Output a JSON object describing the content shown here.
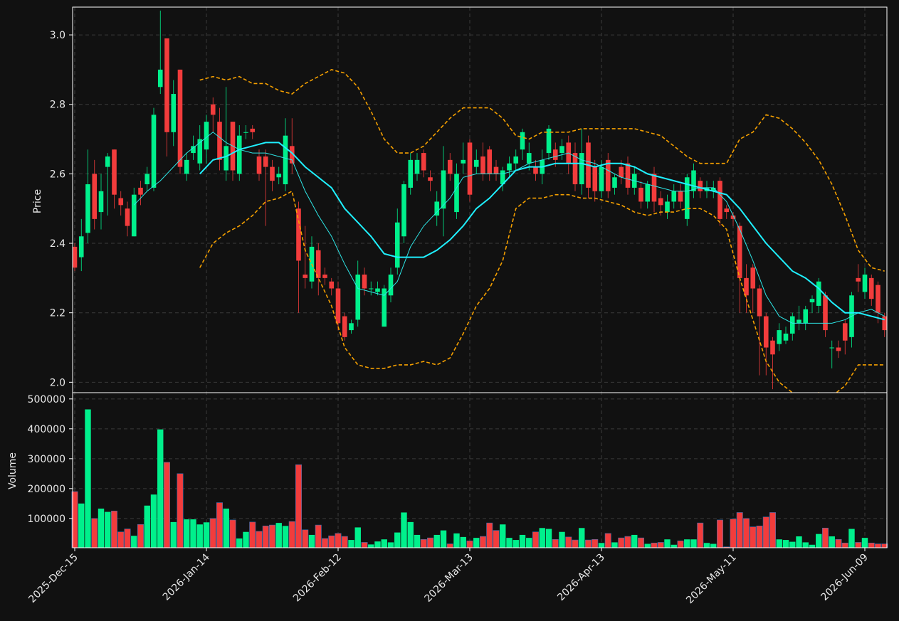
{
  "chart_data": {
    "type": "candlestick",
    "ylabel": "Price",
    "volume_label": "Volume",
    "up_color": "#00f08c",
    "down_color": "#f23c3c",
    "grid": true,
    "ylim": [
      1.97,
      3.08
    ],
    "yticks": [
      {
        "value": 2.0,
        "label": "2.0"
      },
      2.2,
      2.4,
      2.6,
      2.8,
      {
        "value": 3.0,
        "label": "3.0"
      }
    ],
    "volume_ylim": [
      2000,
      521000
    ],
    "volume_yticks": [
      100000,
      200000,
      300000,
      400000,
      500000
    ],
    "categories": [
      "2025-Dec-15",
      null,
      null,
      null,
      null,
      null,
      null,
      null,
      null,
      null,
      null,
      null,
      null,
      null,
      null,
      null,
      null,
      null,
      null,
      null,
      "2026-Jan-14",
      null,
      null,
      null,
      null,
      null,
      null,
      null,
      null,
      null,
      null,
      null,
      null,
      null,
      null,
      null,
      null,
      null,
      null,
      null,
      "2026-Feb-12",
      null,
      null,
      null,
      null,
      null,
      null,
      null,
      null,
      null,
      null,
      null,
      null,
      null,
      null,
      null,
      null,
      null,
      null,
      null,
      "2026-Mar-13",
      null,
      null,
      null,
      null,
      null,
      null,
      null,
      null,
      null,
      null,
      null,
      null,
      null,
      null,
      null,
      null,
      null,
      null,
      null,
      "2026-Apr-13",
      null,
      null,
      null,
      null,
      null,
      null,
      null,
      null,
      null,
      null,
      null,
      null,
      null,
      null,
      null,
      null,
      null,
      null,
      null,
      "2026-May-11",
      null,
      null,
      null,
      null,
      null,
      null,
      null,
      null,
      null,
      null,
      null,
      null,
      null,
      null,
      null,
      null,
      null,
      null,
      null,
      "2026-Jun-09",
      null,
      null,
      null
    ],
    "open": [
      2.39,
      2.36,
      2.43,
      2.6,
      2.49,
      2.62,
      2.67,
      2.53,
      2.5,
      2.42,
      2.56,
      2.57,
      2.56,
      2.85,
      2.99,
      2.72,
      2.9,
      2.6,
      2.66,
      2.63,
      2.67,
      2.8,
      2.75,
      2.61,
      2.75,
      2.6,
      2.72,
      2.73,
      2.65,
      2.65,
      2.62,
      2.59,
      2.57,
      2.68,
      2.5,
      2.31,
      2.29,
      2.38,
      2.31,
      2.29,
      2.27,
      2.19,
      2.15,
      2.18,
      2.31,
      2.27,
      2.26,
      2.16,
      2.25,
      2.33,
      2.42,
      2.56,
      2.6,
      2.66,
      2.59,
      2.48,
      2.5,
      2.64,
      2.49,
      2.63,
      2.69,
      2.62,
      2.65,
      2.67,
      2.62,
      2.57,
      2.61,
      2.63,
      2.67,
      2.63,
      2.62,
      2.6,
      2.66,
      2.67,
      2.66,
      2.69,
      2.66,
      2.57,
      2.69,
      2.62,
      2.55,
      2.64,
      2.56,
      2.62,
      2.63,
      2.56,
      2.56,
      2.52,
      2.6,
      2.53,
      2.49,
      2.52,
      2.55,
      2.47,
      2.55,
      2.58,
      2.55,
      2.55,
      2.58,
      2.5,
      2.48,
      2.45,
      2.3,
      2.33,
      2.27,
      2.19,
      2.12,
      2.11,
      2.12,
      2.14,
      2.17,
      2.17,
      2.23,
      2.22,
      2.25,
      2.1,
      2.1,
      2.17,
      2.13,
      2.3,
      2.26,
      2.3,
      2.28,
      2.19
    ],
    "high": [
      2.4,
      2.47,
      2.67,
      2.64,
      2.6,
      2.66,
      2.67,
      2.55,
      2.52,
      2.56,
      2.58,
      2.62,
      2.79,
      3.07,
      2.99,
      2.87,
      2.9,
      2.66,
      2.71,
      2.74,
      2.77,
      2.82,
      2.79,
      2.85,
      2.75,
      2.74,
      2.74,
      2.74,
      2.67,
      2.67,
      2.64,
      2.62,
      2.76,
      2.76,
      2.52,
      2.45,
      2.42,
      2.4,
      2.33,
      2.3,
      2.29,
      2.2,
      2.18,
      2.35,
      2.33,
      2.29,
      2.29,
      2.28,
      2.33,
      2.5,
      2.58,
      2.66,
      2.66,
      2.67,
      2.61,
      2.55,
      2.68,
      2.66,
      2.63,
      2.69,
      2.7,
      2.67,
      2.69,
      2.68,
      2.64,
      2.62,
      2.65,
      2.67,
      2.73,
      2.69,
      2.64,
      2.67,
      2.74,
      2.69,
      2.7,
      2.71,
      2.69,
      2.73,
      2.71,
      2.64,
      2.64,
      2.66,
      2.6,
      2.64,
      2.65,
      2.62,
      2.58,
      2.58,
      2.62,
      2.55,
      2.54,
      2.57,
      2.57,
      2.6,
      2.63,
      2.59,
      2.58,
      2.58,
      2.59,
      2.51,
      2.49,
      2.46,
      2.34,
      2.34,
      2.28,
      2.2,
      2.13,
      2.17,
      2.16,
      2.2,
      2.22,
      2.22,
      2.25,
      2.3,
      2.26,
      2.12,
      2.12,
      2.18,
      2.26,
      2.34,
      2.33,
      2.31,
      2.29,
      2.2
    ],
    "low": [
      2.32,
      2.32,
      2.4,
      2.44,
      2.44,
      2.48,
      2.5,
      2.48,
      2.42,
      2.42,
      2.51,
      2.55,
      2.55,
      2.83,
      2.65,
      2.68,
      2.6,
      2.58,
      2.64,
      2.61,
      2.63,
      2.72,
      2.61,
      2.58,
      2.58,
      2.58,
      2.7,
      2.7,
      2.58,
      2.45,
      2.55,
      2.57,
      2.55,
      2.6,
      2.2,
      2.27,
      2.27,
      2.25,
      2.28,
      2.25,
      2.15,
      2.12,
      2.14,
      2.16,
      2.25,
      2.25,
      2.25,
      2.16,
      2.23,
      2.31,
      2.4,
      2.54,
      2.58,
      2.59,
      2.55,
      2.45,
      2.42,
      2.58,
      2.47,
      2.6,
      2.52,
      2.6,
      2.58,
      2.58,
      2.58,
      2.55,
      2.59,
      2.61,
      2.64,
      2.61,
      2.58,
      2.57,
      2.64,
      2.62,
      2.64,
      2.6,
      2.55,
      2.54,
      2.53,
      2.52,
      2.53,
      2.53,
      2.54,
      2.57,
      2.54,
      2.54,
      2.5,
      2.5,
      2.49,
      2.48,
      2.47,
      2.5,
      2.5,
      2.45,
      2.53,
      2.53,
      2.53,
      2.53,
      2.45,
      2.47,
      2.45,
      2.2,
      2.2,
      2.2,
      2.02,
      2.02,
      1.98,
      2.09,
      2.11,
      2.12,
      2.15,
      2.15,
      2.2,
      2.2,
      2.13,
      2.04,
      2.07,
      2.08,
      2.1,
      2.26,
      2.24,
      2.22,
      2.17,
      2.13
    ],
    "close": [
      2.33,
      2.42,
      2.57,
      2.47,
      2.55,
      2.65,
      2.54,
      2.51,
      2.45,
      2.54,
      2.54,
      2.6,
      2.77,
      2.9,
      2.72,
      2.83,
      2.62,
      2.64,
      2.68,
      2.7,
      2.75,
      2.77,
      2.64,
      2.68,
      2.61,
      2.71,
      2.72,
      2.72,
      2.6,
      2.62,
      2.58,
      2.6,
      2.71,
      2.63,
      2.35,
      2.3,
      2.39,
      2.3,
      2.3,
      2.27,
      2.17,
      2.13,
      2.17,
      2.31,
      2.27,
      2.27,
      2.27,
      2.27,
      2.31,
      2.46,
      2.57,
      2.64,
      2.64,
      2.61,
      2.58,
      2.52,
      2.61,
      2.6,
      2.6,
      2.64,
      2.54,
      2.64,
      2.6,
      2.6,
      2.6,
      2.61,
      2.63,
      2.65,
      2.72,
      2.66,
      2.6,
      2.64,
      2.73,
      2.64,
      2.68,
      2.63,
      2.57,
      2.66,
      2.56,
      2.55,
      2.62,
      2.55,
      2.59,
      2.59,
      2.56,
      2.6,
      2.52,
      2.57,
      2.52,
      2.51,
      2.52,
      2.55,
      2.52,
      2.59,
      2.61,
      2.55,
      2.56,
      2.56,
      2.47,
      2.49,
      2.47,
      2.3,
      2.25,
      2.27,
      2.19,
      2.1,
      2.08,
      2.15,
      2.14,
      2.19,
      2.18,
      2.21,
      2.24,
      2.29,
      2.15,
      2.1,
      2.09,
      2.12,
      2.25,
      2.29,
      2.31,
      2.24,
      2.2,
      2.15
    ],
    "volume": [
      190000,
      150000,
      465000,
      100000,
      133000,
      122000,
      125000,
      55000,
      65000,
      42000,
      80000,
      143000,
      180000,
      398000,
      288000,
      88000,
      250000,
      97000,
      97000,
      80000,
      87000,
      100000,
      153000,
      133000,
      95000,
      33000,
      55000,
      88000,
      57000,
      75000,
      78000,
      85000,
      75000,
      90000,
      280000,
      62000,
      45000,
      78000,
      33000,
      42000,
      50000,
      40000,
      28000,
      70000,
      20000,
      13000,
      23000,
      30000,
      20000,
      53000,
      120000,
      88000,
      45000,
      30000,
      35000,
      45000,
      60000,
      15000,
      50000,
      38000,
      25000,
      35000,
      40000,
      85000,
      60000,
      80000,
      35000,
      28000,
      45000,
      35000,
      55000,
      68000,
      65000,
      30000,
      55000,
      38000,
      28000,
      68000,
      28000,
      30000,
      18000,
      50000,
      20000,
      35000,
      40000,
      45000,
      35000,
      15000,
      18000,
      20000,
      30000,
      12000,
      25000,
      30000,
      30000,
      85000,
      18000,
      15000,
      95000,
      5000,
      98000,
      120000,
      100000,
      72000,
      75000,
      105000,
      120000,
      30000,
      28000,
      22000,
      40000,
      20000,
      12000,
      48000,
      68000,
      40000,
      30000,
      18000,
      65000,
      20000,
      35000,
      18000,
      15000,
      15000
    ],
    "overlays": [
      {
        "color": "#2ee6e6",
        "width": 1,
        "dash": false,
        "x": [
          9,
          11,
          13,
          15,
          17,
          19,
          21,
          23,
          25,
          27,
          29,
          31,
          33,
          35,
          37,
          39,
          41,
          43,
          45,
          47,
          49,
          51,
          53,
          55,
          57,
          59,
          61,
          63,
          65,
          67,
          69,
          71,
          73,
          75,
          77,
          79,
          81,
          83,
          85,
          87,
          89,
          91,
          93,
          95,
          97,
          99,
          101,
          103,
          105,
          107,
          109,
          111,
          113,
          115,
          117,
          119,
          121,
          123
        ],
        "values": [
          2.51,
          2.55,
          2.58,
          2.62,
          2.66,
          2.69,
          2.72,
          2.69,
          2.67,
          2.66,
          2.66,
          2.65,
          2.64,
          2.55,
          2.48,
          2.42,
          2.34,
          2.27,
          2.26,
          2.25,
          2.29,
          2.39,
          2.45,
          2.49,
          2.53,
          2.59,
          2.6,
          2.6,
          2.6,
          2.61,
          2.63,
          2.64,
          2.65,
          2.66,
          2.64,
          2.63,
          2.61,
          2.59,
          2.58,
          2.57,
          2.56,
          2.55,
          2.55,
          2.56,
          2.56,
          2.52,
          2.44,
          2.35,
          2.25,
          2.19,
          2.17,
          2.17,
          2.17,
          2.17,
          2.18,
          2.2,
          2.21,
          2.19
        ]
      },
      {
        "color": "#1ff0ff",
        "width": 2,
        "dash": false,
        "x": [
          19,
          21,
          23,
          25,
          27,
          29,
          31,
          33,
          35,
          37,
          39,
          41,
          43,
          45,
          47,
          49,
          51,
          53,
          55,
          57,
          59,
          61,
          63,
          65,
          67,
          69,
          71,
          73,
          75,
          77,
          79,
          81,
          83,
          85,
          87,
          89,
          91,
          93,
          95,
          97,
          99,
          101,
          103,
          105,
          107,
          109,
          111,
          113,
          115,
          117,
          119,
          121,
          123
        ],
        "values": [
          2.6,
          2.64,
          2.65,
          2.67,
          2.68,
          2.69,
          2.69,
          2.66,
          2.62,
          2.59,
          2.56,
          2.5,
          2.46,
          2.42,
          2.37,
          2.36,
          2.36,
          2.36,
          2.38,
          2.41,
          2.45,
          2.5,
          2.53,
          2.57,
          2.61,
          2.62,
          2.62,
          2.63,
          2.63,
          2.63,
          2.62,
          2.63,
          2.63,
          2.62,
          2.6,
          2.59,
          2.58,
          2.57,
          2.56,
          2.55,
          2.54,
          2.5,
          2.45,
          2.4,
          2.36,
          2.32,
          2.3,
          2.27,
          2.23,
          2.2,
          2.2,
          2.19,
          2.18
        ]
      },
      {
        "color": "#f5a000",
        "width": 1.6,
        "dash": true,
        "x": [
          19,
          21,
          23,
          25,
          27,
          29,
          31,
          33,
          35,
          37,
          39,
          41,
          43,
          45,
          47,
          49,
          51,
          53,
          55,
          57,
          59,
          61,
          63,
          65,
          67,
          69,
          71,
          73,
          75,
          77,
          79,
          81,
          83,
          85,
          87,
          89,
          91,
          93,
          95,
          97,
          99,
          101,
          103,
          105,
          107,
          109,
          111,
          113,
          115,
          117,
          119,
          121,
          123
        ],
        "values": [
          2.87,
          2.88,
          2.87,
          2.88,
          2.86,
          2.86,
          2.84,
          2.83,
          2.86,
          2.88,
          2.9,
          2.89,
          2.85,
          2.78,
          2.7,
          2.66,
          2.66,
          2.68,
          2.72,
          2.76,
          2.79,
          2.79,
          2.79,
          2.76,
          2.71,
          2.7,
          2.72,
          2.72,
          2.72,
          2.73,
          2.73,
          2.73,
          2.73,
          2.73,
          2.72,
          2.71,
          2.68,
          2.65,
          2.63,
          2.63,
          2.63,
          2.7,
          2.72,
          2.77,
          2.76,
          2.73,
          2.69,
          2.64,
          2.57,
          2.48,
          2.38,
          2.33,
          2.32
        ]
      },
      {
        "color": "#f5a000",
        "width": 1.6,
        "dash": true,
        "x": [
          19,
          21,
          23,
          25,
          27,
          29,
          31,
          33,
          35,
          37,
          39,
          41,
          43,
          45,
          47,
          49,
          51,
          53,
          55,
          57,
          59,
          61,
          63,
          65,
          67,
          69,
          71,
          73,
          75,
          77,
          79,
          81,
          83,
          85,
          87,
          89,
          91,
          93,
          95,
          97,
          99,
          101,
          103,
          105,
          107,
          109,
          111,
          113,
          115,
          117,
          119,
          121,
          123
        ],
        "values": [
          2.33,
          2.4,
          2.43,
          2.45,
          2.48,
          2.52,
          2.53,
          2.55,
          2.38,
          2.3,
          2.22,
          2.1,
          2.05,
          2.04,
          2.04,
          2.05,
          2.05,
          2.06,
          2.05,
          2.07,
          2.14,
          2.22,
          2.27,
          2.35,
          2.5,
          2.53,
          2.53,
          2.54,
          2.54,
          2.53,
          2.53,
          2.52,
          2.51,
          2.49,
          2.48,
          2.49,
          2.49,
          2.5,
          2.5,
          2.48,
          2.44,
          2.3,
          2.18,
          2.06,
          2.0,
          1.97,
          1.96,
          1.97,
          1.96,
          1.99,
          2.05,
          2.05,
          2.05
        ]
      }
    ]
  }
}
